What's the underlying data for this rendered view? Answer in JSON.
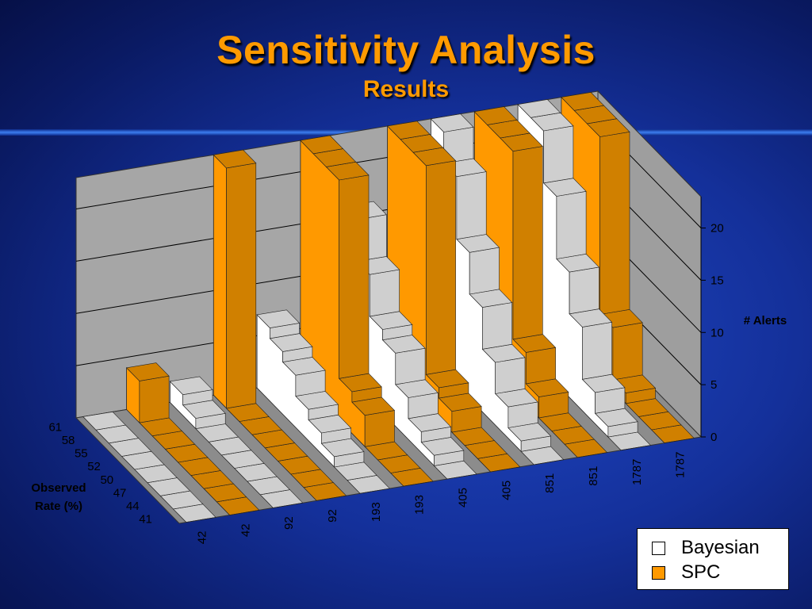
{
  "slide": {
    "title": "Sensitivity Analysis",
    "subtitle": "Results"
  },
  "colors": {
    "bayesian": "#ffffff",
    "spc": "#ff9900",
    "wall": "#a6a6a6",
    "floor": "#8c8c8c",
    "background": "#14309a"
  },
  "chart_data": {
    "type": "bar",
    "subtype": "3d-ribbon",
    "title": "",
    "zlabel": "# Alerts",
    "ylabel": "Observed Rate (%)",
    "z_ticks": [
      "0",
      "5",
      "10",
      "15",
      "20"
    ],
    "zlim": [
      0,
      23
    ],
    "observed_rate_ticks": [
      "41",
      "44",
      "47",
      "50",
      "52",
      "55",
      "58",
      "61"
    ],
    "x_labels": [
      "42",
      "42",
      "92",
      "92",
      "193",
      "193",
      "405",
      "405",
      "851",
      "851",
      "1787",
      "1787"
    ],
    "gridlines": true,
    "legend_position": "bottom-right",
    "series": [
      {
        "name": "Bayesian",
        "x": "42",
        "values": [
          0,
          0,
          0,
          0,
          0,
          0,
          0,
          0
        ]
      },
      {
        "name": "SPC",
        "x": "42",
        "values": [
          0,
          0,
          0,
          0,
          0,
          0,
          0,
          4
        ]
      },
      {
        "name": "Bayesian",
        "x": "92",
        "values": [
          0,
          0,
          0,
          0,
          0,
          0,
          1,
          2
        ]
      },
      {
        "name": "SPC",
        "x": "92",
        "values": [
          0,
          0,
          0,
          0,
          0,
          0,
          0,
          25
        ]
      },
      {
        "name": "Bayesian",
        "x": "193",
        "values": [
          0,
          0,
          1,
          2,
          3,
          5,
          6,
          7
        ]
      },
      {
        "name": "SPC",
        "x": "193",
        "values": [
          0,
          0,
          0,
          3,
          4,
          25,
          25,
          25
        ]
      },
      {
        "name": "Bayesian",
        "x": "405",
        "values": [
          0,
          1,
          2,
          4,
          7,
          8,
          12,
          16
        ]
      },
      {
        "name": "SPC",
        "x": "405",
        "values": [
          0,
          0,
          0,
          2,
          3,
          25,
          25,
          25
        ]
      },
      {
        "name": "Bayesian",
        "x": "851",
        "values": [
          0,
          1,
          3,
          6,
          10,
          14,
          20,
          25
        ]
      },
      {
        "name": "SPC",
        "x": "851",
        "values": [
          0,
          0,
          0,
          2,
          5,
          25,
          25,
          25
        ]
      },
      {
        "name": "Bayesian",
        "x": "1787",
        "values": [
          0,
          1,
          3,
          8,
          12,
          18,
          24,
          25
        ]
      },
      {
        "name": "SPC",
        "x": "1787",
        "values": [
          0,
          0,
          0,
          1,
          6,
          24,
          25,
          25
        ]
      }
    ]
  },
  "legend": {
    "items": [
      {
        "label": "Bayesian"
      },
      {
        "label": "SPC"
      }
    ]
  }
}
